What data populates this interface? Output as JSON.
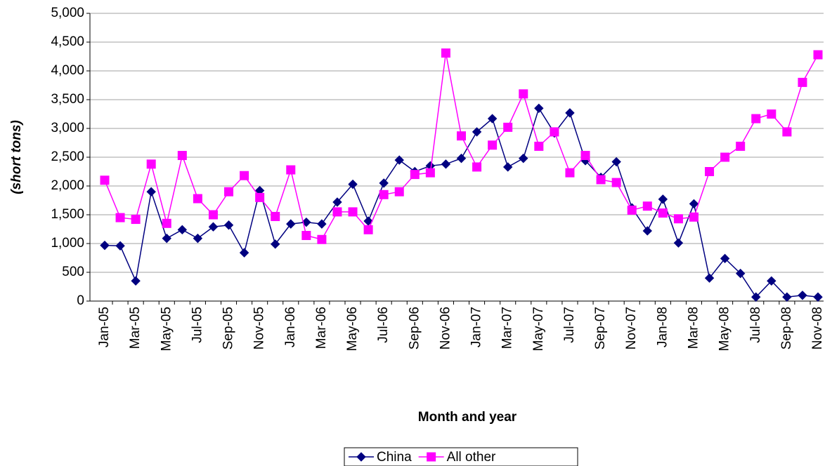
{
  "chart_data": {
    "type": "line",
    "x_label": "Month and year",
    "y_label": "(short tons)",
    "categories": [
      "Jan-05",
      null,
      "Mar-05",
      null,
      "May-05",
      null,
      "Jul-05",
      null,
      "Sep-05",
      null,
      "Nov-05",
      null,
      "Jan-06",
      null,
      "Mar-06",
      null,
      "May-06",
      null,
      "Jul-06",
      null,
      "Sep-06",
      null,
      "Nov-06",
      null,
      "Jan-07",
      null,
      "Mar-07",
      null,
      "May-07",
      null,
      "Jul-07",
      null,
      "Sep-07",
      null,
      "Nov-07",
      null,
      "Jan-08",
      null,
      "Mar-08",
      null,
      "May-08",
      null,
      "Jul-08",
      null,
      "Sep-08",
      null,
      "Nov-08"
    ],
    "series": [
      {
        "name": "China",
        "color": "#000080",
        "marker": "diamond",
        "values": [
          968,
          960,
          350,
          1900,
          1090,
          1240,
          1090,
          1290,
          1320,
          840,
          1920,
          990,
          1340,
          1370,
          1340,
          1720,
          2030,
          1390,
          2050,
          2450,
          2250,
          2350,
          2380,
          2480,
          2940,
          3170,
          2330,
          2480,
          3350,
          2920,
          3270,
          2440,
          2150,
          2420,
          1620,
          1220,
          1770,
          1010,
          1690,
          400,
          740,
          480,
          70,
          350,
          70,
          100,
          70
        ]
      },
      {
        "name": "All other",
        "color": "#ff00ff",
        "marker": "square",
        "values": [
          2100,
          1450,
          1420,
          2380,
          1350,
          2530,
          1780,
          1500,
          1900,
          2180,
          1800,
          1470,
          2280,
          1140,
          1070,
          1550,
          1550,
          1240,
          1850,
          1900,
          2200,
          2230,
          4310,
          2870,
          2330,
          2710,
          3020,
          3600,
          2690,
          2940,
          2230,
          2530,
          2110,
          2060,
          1580,
          1650,
          1530,
          1430,
          1460,
          2250,
          2500,
          2690,
          3170,
          3250,
          2940,
          3800,
          4280
        ]
      }
    ],
    "ylim": [
      0,
      5000
    ],
    "yticks": [
      0,
      500,
      {
        "value": 1000,
        "label": "1,000"
      },
      {
        "value": 1500,
        "label": "1,500"
      },
      {
        "value": 2000,
        "label": "2,000"
      },
      {
        "value": 2500,
        "label": "2,500"
      },
      {
        "value": 3000,
        "label": "3,000"
      },
      {
        "value": 3500,
        "label": "3,500"
      },
      {
        "value": 4000,
        "label": "4,000"
      },
      {
        "value": 4500,
        "label": "4,500"
      },
      {
        "value": 5000,
        "label": "5,000"
      }
    ],
    "grid": true,
    "legend": "bottom"
  }
}
